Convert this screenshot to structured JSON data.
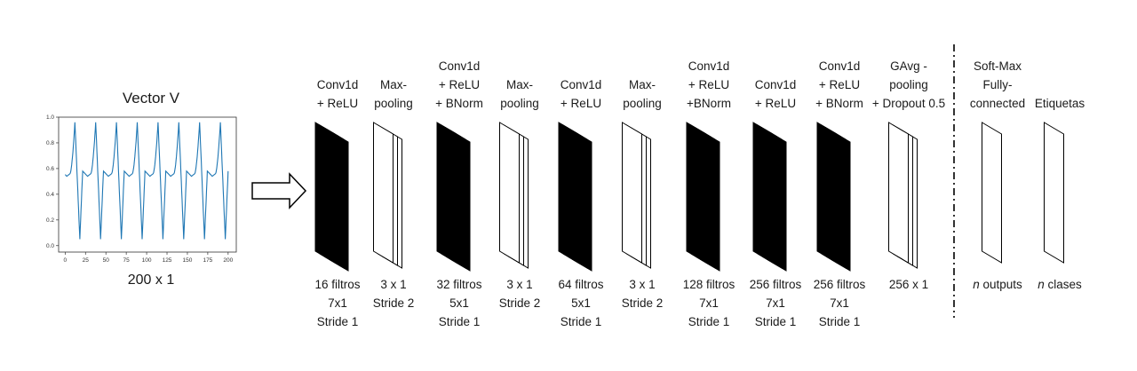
{
  "input": {
    "title": "Vector V",
    "size": "200 x 1",
    "plot": {
      "xticks": [
        "0",
        "25",
        "50",
        "75",
        "100",
        "125",
        "150",
        "175",
        "200"
      ],
      "yticks": [
        "0.0",
        "0.2",
        "0.4",
        "0.6",
        "0.8",
        "1.0"
      ],
      "line_color": "#1f77b4"
    }
  },
  "layers": [
    {
      "id": "conv1",
      "top": [
        "Conv1d",
        "+ ReLU"
      ],
      "bottom": [
        "16 filtros",
        "7x1",
        "Stride 1"
      ],
      "style": "filled"
    },
    {
      "id": "pool1",
      "top": [
        "Max-",
        "pooling"
      ],
      "bottom": [
        "3 x 1",
        "Stride 2"
      ],
      "style": "outline"
    },
    {
      "id": "conv2",
      "top": [
        "Conv1d",
        "+ ReLU",
        "+ BNorm"
      ],
      "bottom": [
        "32 filtros",
        "5x1",
        "Stride 1"
      ],
      "style": "filled"
    },
    {
      "id": "pool2",
      "top": [
        "Max-",
        "pooling"
      ],
      "bottom": [
        "3 x 1",
        "Stride 2"
      ],
      "style": "outline"
    },
    {
      "id": "conv3",
      "top": [
        "Conv1d",
        "+ ReLU"
      ],
      "bottom": [
        "64 filtros",
        "5x1",
        "Stride 1"
      ],
      "style": "filled"
    },
    {
      "id": "pool3",
      "top": [
        "Max-",
        "pooling"
      ],
      "bottom": [
        "3 x 1",
        "Stride 2"
      ],
      "style": "outline"
    },
    {
      "id": "conv4",
      "top": [
        "Conv1d",
        "+ ReLU",
        "+BNorm"
      ],
      "bottom": [
        "128 filtros",
        "7x1",
        "Stride 1"
      ],
      "style": "filled"
    },
    {
      "id": "conv5",
      "top": [
        "Conv1d",
        "+ ReLU"
      ],
      "bottom": [
        "256 filtros",
        "7x1",
        "Stride 1"
      ],
      "style": "filled"
    },
    {
      "id": "conv6",
      "top": [
        "Conv1d",
        "+ ReLU",
        "+ BNorm"
      ],
      "bottom": [
        "256 filtros",
        "7x1",
        "Stride 1"
      ],
      "style": "filled"
    },
    {
      "id": "gap",
      "top": [
        "GAvg -",
        "pooling",
        "+ Dropout 0.5"
      ],
      "bottom": [
        "256 x 1"
      ],
      "style": "outline"
    },
    {
      "id": "fc",
      "top": [
        "Soft-Max",
        "Fully-",
        "connected"
      ],
      "bottom_italic": "n",
      "bottom": [
        " outputs"
      ],
      "style": "single"
    },
    {
      "id": "labels",
      "top": [
        "Etiquetas"
      ],
      "bottom_italic": "n",
      "bottom": [
        " clases"
      ],
      "style": "single"
    }
  ],
  "colors": {
    "stroke": "#000000",
    "fill_dark": "#000000",
    "fill_light": "#ffffff"
  }
}
